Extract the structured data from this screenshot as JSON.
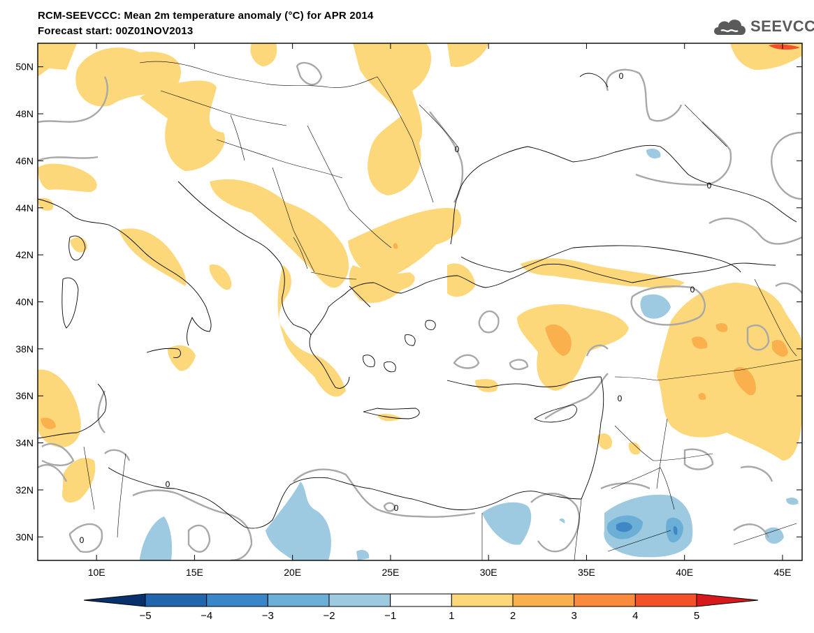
{
  "header": {
    "title": "RCM-SEEVCCC: Mean 2m temperature anomaly (°C) for APR 2014",
    "subtitle": "Forecast start: 00Z01NOV2013",
    "logo_text": "SEEVCCC"
  },
  "map": {
    "lon_range": [
      7,
      46
    ],
    "lat_range": [
      29,
      51
    ],
    "lon_ticks": [
      {
        "value": 10,
        "label": "10E"
      },
      {
        "value": 15,
        "label": "15E"
      },
      {
        "value": 20,
        "label": "20E"
      },
      {
        "value": 25,
        "label": "25E"
      },
      {
        "value": 30,
        "label": "30E"
      },
      {
        "value": 35,
        "label": "35E"
      },
      {
        "value": 40,
        "label": "40E"
      },
      {
        "value": 45,
        "label": "45E"
      }
    ],
    "lat_ticks": [
      {
        "value": 30,
        "label": "30N"
      },
      {
        "value": 32,
        "label": "32N"
      },
      {
        "value": 34,
        "label": "34N"
      },
      {
        "value": 36,
        "label": "36N"
      },
      {
        "value": 38,
        "label": "38N"
      },
      {
        "value": 40,
        "label": "40N"
      },
      {
        "value": 42,
        "label": "42N"
      },
      {
        "value": 44,
        "label": "44N"
      },
      {
        "value": 46,
        "label": "46N"
      },
      {
        "value": 48,
        "label": "48N"
      },
      {
        "value": 50,
        "label": "50N"
      }
    ],
    "contour_label": "0",
    "colors": {
      "warm1": "#fdd87a",
      "warm2": "#fbb04e",
      "warm3": "#f98a3e",
      "cool1": "#9ecae1",
      "cool2": "#6baed6",
      "cool3": "#3f88c5",
      "contour": "#a8a8a8",
      "coast": "#000000"
    }
  },
  "colorbar": {
    "labels": [
      "−5",
      "−4",
      "−3",
      "−2",
      "−1",
      "1",
      "2",
      "3",
      "4",
      "5"
    ],
    "colors": [
      "#08306b",
      "#2166ac",
      "#3a86c8",
      "#6baed6",
      "#9ecae1",
      "#ffffff",
      "#fdd87a",
      "#fbb04e",
      "#f98a3e",
      "#f4502a",
      "#d7191c"
    ]
  }
}
